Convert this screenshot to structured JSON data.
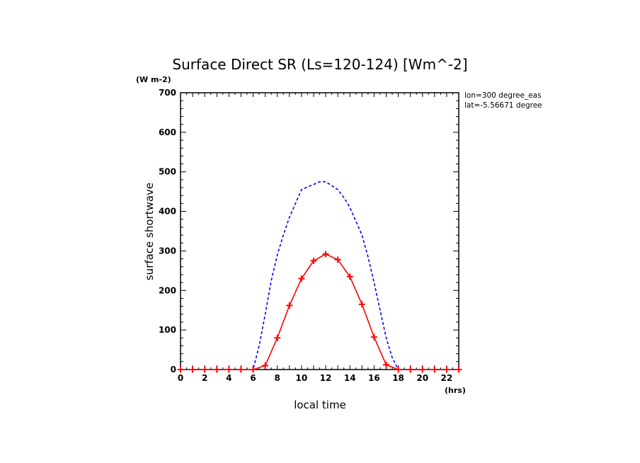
{
  "chart_data": {
    "type": "line",
    "title": "Surface Direct SR (Ls=120-124) [Wm^-2]",
    "yunits": "(W m-2)",
    "xunits": "(hrs)",
    "xlabel": "local time",
    "ylabel": "surface shortwave",
    "xlim": [
      0,
      23
    ],
    "ylim": [
      0,
      700
    ],
    "x_ticks": [
      0,
      2,
      4,
      6,
      8,
      10,
      12,
      14,
      16,
      18,
      20,
      22
    ],
    "y_ticks": [
      0,
      100,
      200,
      300,
      400,
      500,
      600,
      700
    ],
    "annotations": [
      "lon=300 degree_eas",
      "lat=-5.56671 degree"
    ],
    "grid": false,
    "colors": {
      "series_0": "#0000ff",
      "series_1": "#ff0000"
    },
    "series": [
      {
        "style": "dashed",
        "x": [
          0,
          1,
          2,
          3,
          4,
          5,
          6,
          6.5,
          7,
          7.5,
          8,
          8.5,
          9,
          9.5,
          10,
          10.5,
          11,
          11.5,
          12,
          12.5,
          13,
          13.5,
          14,
          14.5,
          15,
          15.5,
          16,
          16.5,
          17,
          17.5,
          18,
          19,
          20,
          21,
          22,
          23
        ],
        "values": [
          0,
          0,
          0,
          0,
          0,
          0,
          0,
          60,
          140,
          225,
          290,
          340,
          385,
          420,
          455,
          462,
          468,
          475,
          475,
          465,
          455,
          435,
          410,
          375,
          340,
          285,
          220,
          150,
          80,
          30,
          0,
          0,
          0,
          0,
          0,
          0
        ]
      },
      {
        "style": "solid-markers",
        "x": [
          0,
          1,
          2,
          3,
          4,
          5,
          6,
          7,
          8,
          9,
          10,
          11,
          12,
          13,
          14,
          15,
          16,
          17,
          18,
          19,
          20,
          21,
          22,
          23
        ],
        "values": [
          0,
          0,
          0,
          0,
          0,
          0,
          0,
          10,
          80,
          162,
          230,
          275,
          292,
          278,
          235,
          165,
          82,
          12,
          0,
          0,
          0,
          0,
          0,
          0
        ]
      }
    ]
  }
}
